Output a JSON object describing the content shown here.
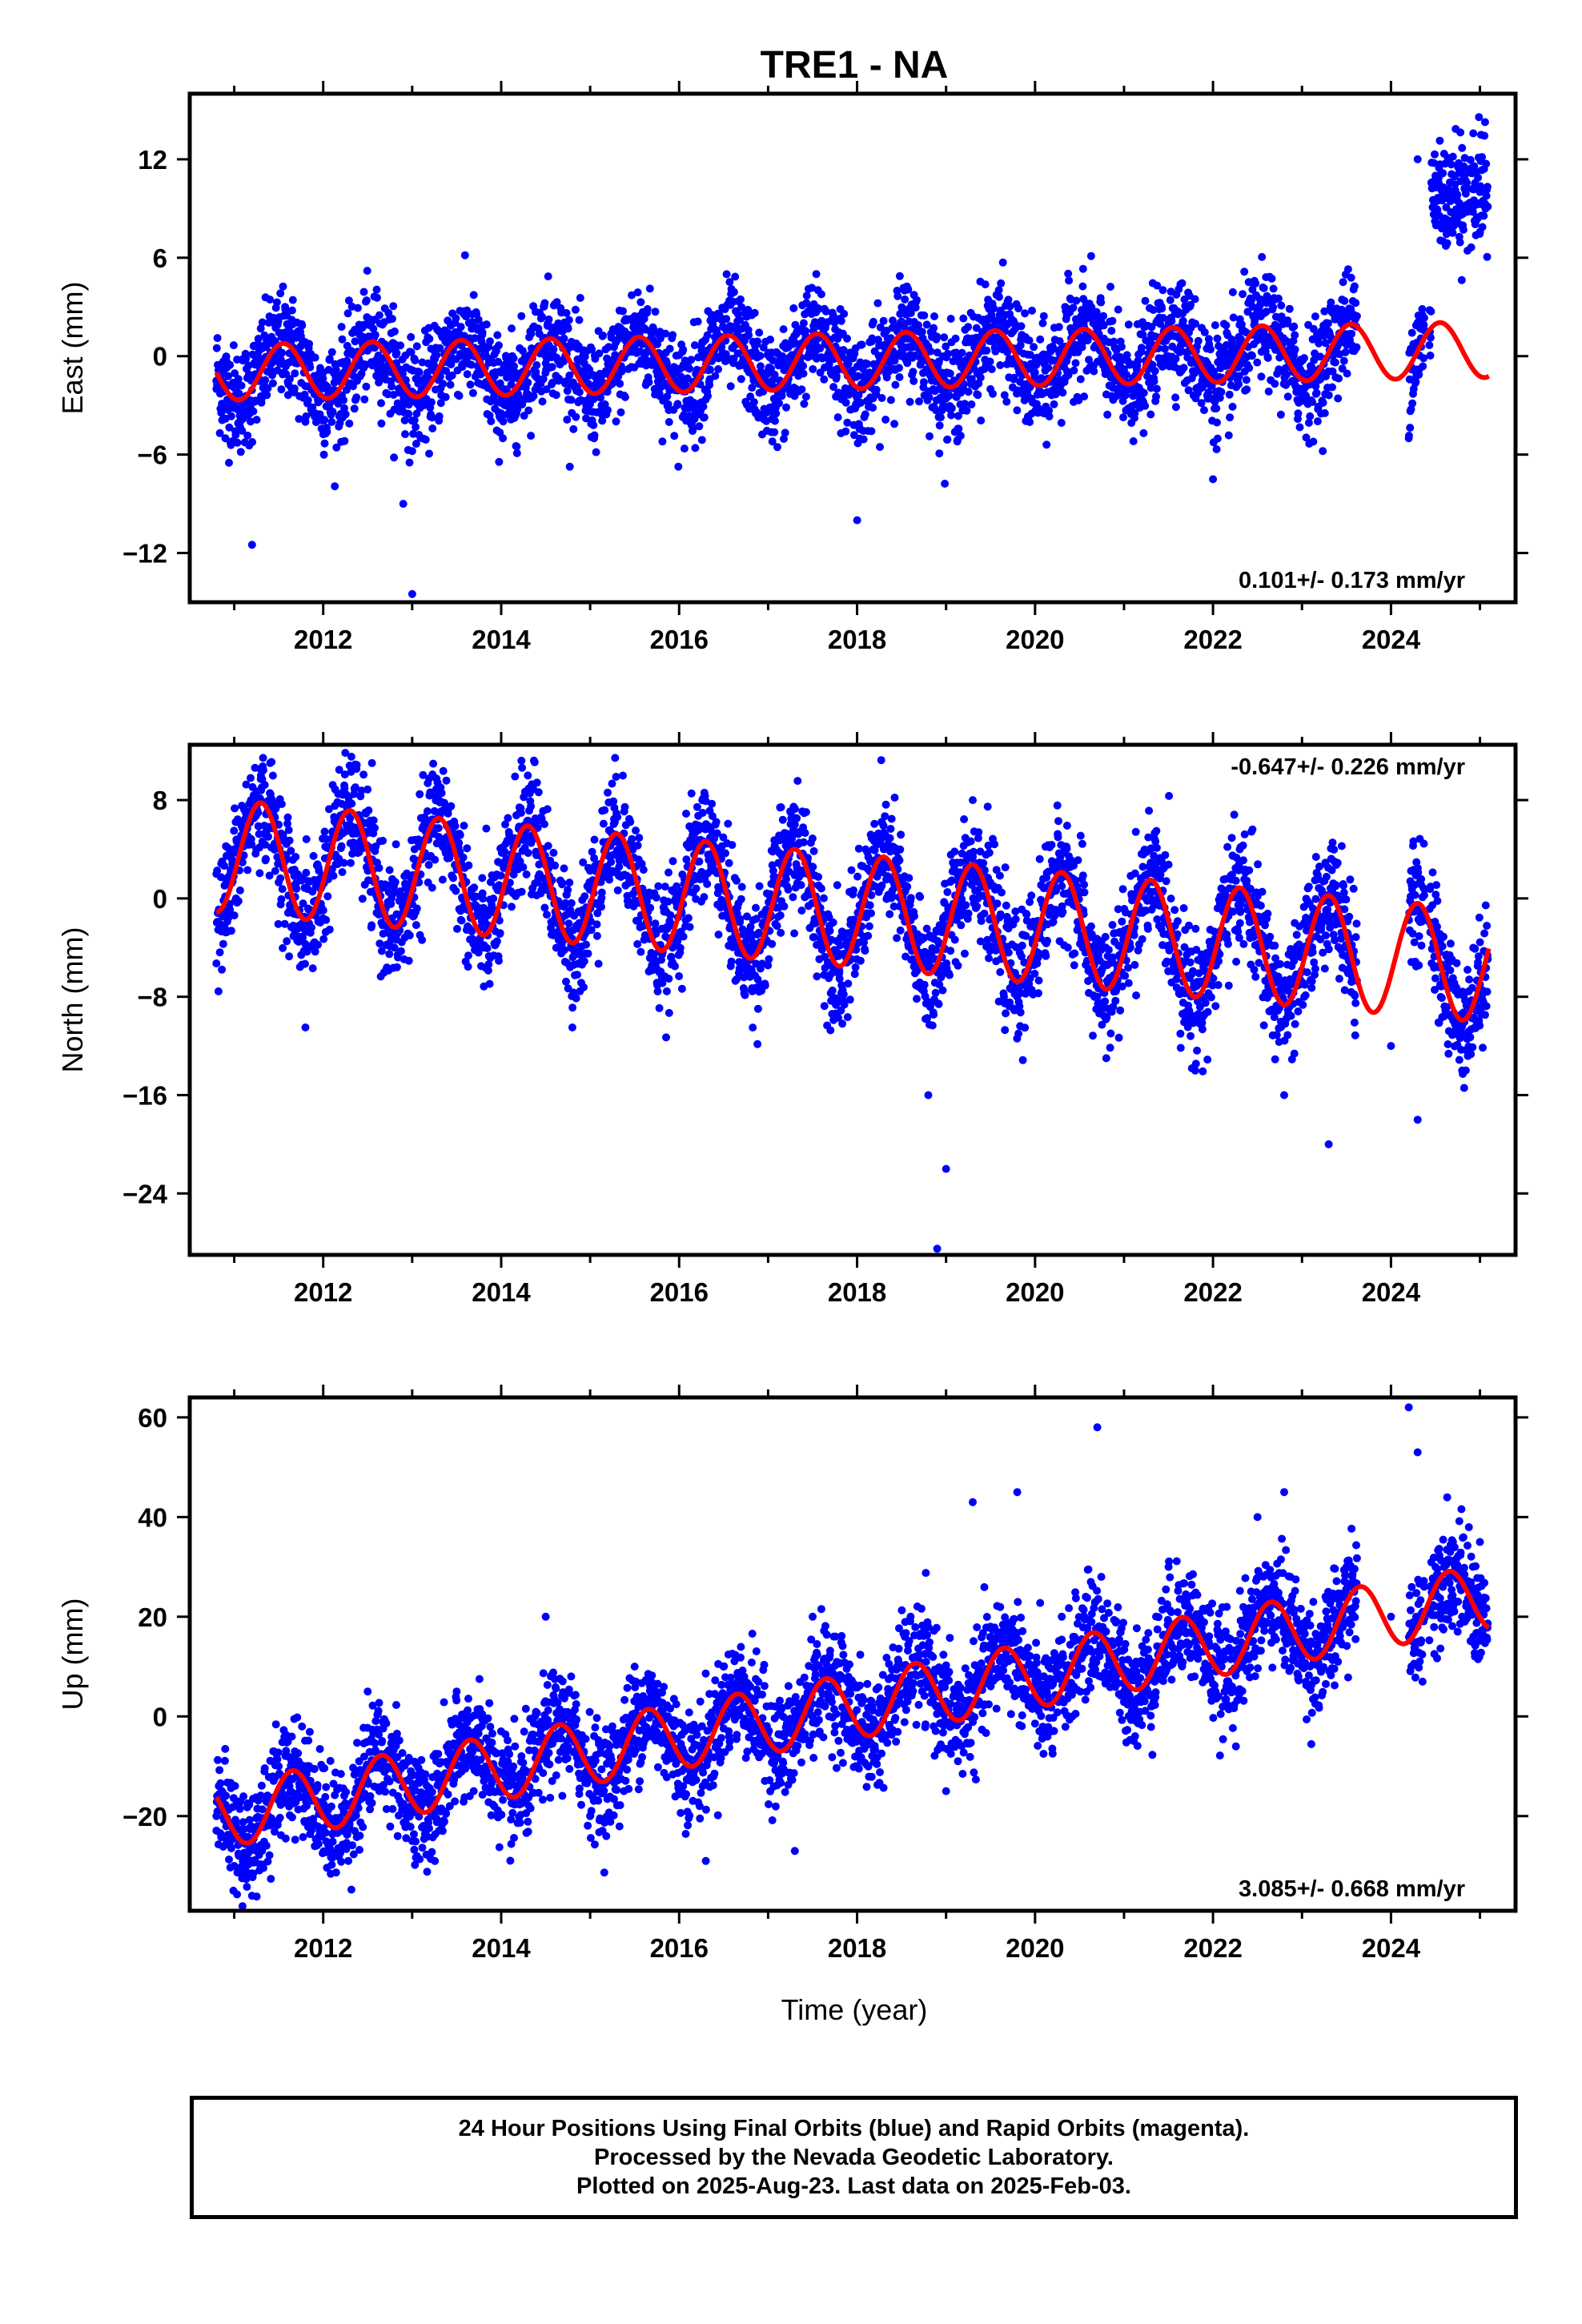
{
  "title": "TRE1 - NA",
  "xlabel": "Time (year)",
  "x_ticks": [
    2012,
    2014,
    2016,
    2018,
    2020,
    2022,
    2024
  ],
  "footer": {
    "line1": "24 Hour Positions Using Final Orbits (blue) and Rapid Orbits (magenta).",
    "line2": "Processed by the Nevada Geodetic Laboratory.",
    "line3": "Plotted on 2025-Aug-23. Last data on 2025-Feb-03."
  },
  "colors": {
    "data_points": "#0000ff",
    "fit_line": "#ff0000",
    "frame": "#000000"
  },
  "chart_data": [
    {
      "type": "scatter",
      "ylabel": "East (mm)",
      "xlim": [
        2010.5,
        2025.4
      ],
      "ylim": [
        -15,
        16
      ],
      "y_ticks": [
        -12,
        -6,
        0,
        6,
        12
      ],
      "rate_text": "0.101+/- 0.173 mm/yr",
      "rate_position": "bottom-right",
      "series": [
        {
          "kind": "points",
          "x": [
            2010.8,
            2010.9,
            2011.0,
            2011.2,
            2011.5,
            2011.8,
            2012.0,
            2012.5,
            2012.9,
            2013.0,
            2013.5,
            2014.0,
            2014.5,
            2015.0,
            2015.5,
            2016.0,
            2016.5,
            2017.0,
            2017.5,
            2018.0,
            2018.5,
            2019.0,
            2019.5,
            2020.0,
            2020.5,
            2021.0,
            2021.5,
            2022.0,
            2022.5,
            2023.0,
            2023.5,
            2024.2,
            2024.3,
            2024.5,
            2024.8,
            2025.0
          ],
          "y": [
            -2,
            -5,
            -3,
            -11.5,
            0,
            -4,
            -1,
            1,
            -9,
            -14.5,
            1,
            -1,
            0,
            -2,
            1,
            -2,
            0,
            -1,
            1,
            -10,
            0,
            -2,
            1,
            -1,
            2,
            -1,
            2,
            -7.5,
            1,
            -1,
            2,
            -5,
            12,
            11,
            9,
            10
          ]
        },
        {
          "kind": "fit",
          "name": "",
          "x_start": 2010.8,
          "x_end": 2025.1,
          "trend_start": -1.0,
          "trend_end": 0.4,
          "amplitude": 1.7,
          "phase_year": 2011.55
        }
      ]
    },
    {
      "type": "scatter",
      "ylabel": "North (mm)",
      "xlim": [
        2010.5,
        2025.4
      ],
      "ylim": [
        -29,
        12.5
      ],
      "y_ticks": [
        -24,
        -16,
        -8,
        0,
        8
      ],
      "rate_text": "-0.647+/- 0.226 mm/yr",
      "rate_position": "top-right",
      "series": [
        {
          "kind": "points",
          "x": [
            2010.8,
            2011.0,
            2011.3,
            2011.5,
            2011.8,
            2012.3,
            2012.8,
            2013.3,
            2013.8,
            2014.3,
            2014.8,
            2015.3,
            2015.8,
            2016.3,
            2016.8,
            2017.3,
            2017.8,
            2018.3,
            2018.8,
            2018.9,
            2019.0,
            2019.3,
            2019.8,
            2020.3,
            2020.8,
            2021.3,
            2021.8,
            2022.3,
            2022.8,
            2023.3,
            2024.0,
            2024.3,
            2024.8,
            2025.0
          ],
          "y": [
            2,
            4,
            10,
            6,
            -10.5,
            6,
            -4,
            5,
            -4,
            10,
            -10.5,
            5,
            -5,
            6,
            -5,
            6,
            -6,
            4,
            -16,
            -28.5,
            -22,
            8,
            -8,
            1,
            -13,
            0,
            -14,
            4,
            -16,
            -20,
            -12,
            -18,
            -14,
            -7
          ]
        },
        {
          "kind": "fit",
          "name": "",
          "x_start": 2010.8,
          "x_end": 2025.1,
          "trend_start": 3.5,
          "trend_end": -5.5,
          "amplitude": 4.6,
          "phase_year": 2011.3
        }
      ]
    },
    {
      "type": "scatter",
      "ylabel": "Up (mm)",
      "xlim": [
        2010.5,
        2025.4
      ],
      "ylim": [
        -39,
        64
      ],
      "y_ticks": [
        -20,
        0,
        20,
        40,
        60
      ],
      "rate_text": "3.085+/- 0.668 mm/yr",
      "rate_position": "bottom-right",
      "series": [
        {
          "kind": "points",
          "x": [
            2010.8,
            2011.0,
            2011.2,
            2011.5,
            2012.0,
            2012.5,
            2013.0,
            2013.5,
            2014.0,
            2014.5,
            2015.0,
            2015.5,
            2016.0,
            2016.3,
            2016.5,
            2017.0,
            2017.3,
            2017.5,
            2018.0,
            2018.5,
            2019.0,
            2019.3,
            2019.8,
            2020.3,
            2020.7,
            2021.0,
            2021.5,
            2022.0,
            2022.5,
            2022.8,
            2023.0,
            2023.5,
            2024.0,
            2024.2,
            2024.3,
            2024.5,
            2024.8,
            2025.0
          ],
          "y": [
            -20,
            -30,
            -36,
            -10,
            -20,
            5,
            -25,
            5,
            -15,
            20,
            -20,
            10,
            -15,
            -29,
            10,
            -5,
            -27,
            20,
            -10,
            10,
            -15,
            43,
            45,
            20,
            58,
            5,
            30,
            5,
            40,
            45,
            10,
            30,
            20,
            62,
            53,
            30,
            20,
            35
          ]
        },
        {
          "kind": "fit",
          "name": "",
          "x_start": 2010.8,
          "x_end": 2025.1,
          "trend_start": -20.0,
          "trend_end": 24.0,
          "amplitude": 6.5,
          "phase_year": 2010.65
        }
      ]
    }
  ]
}
